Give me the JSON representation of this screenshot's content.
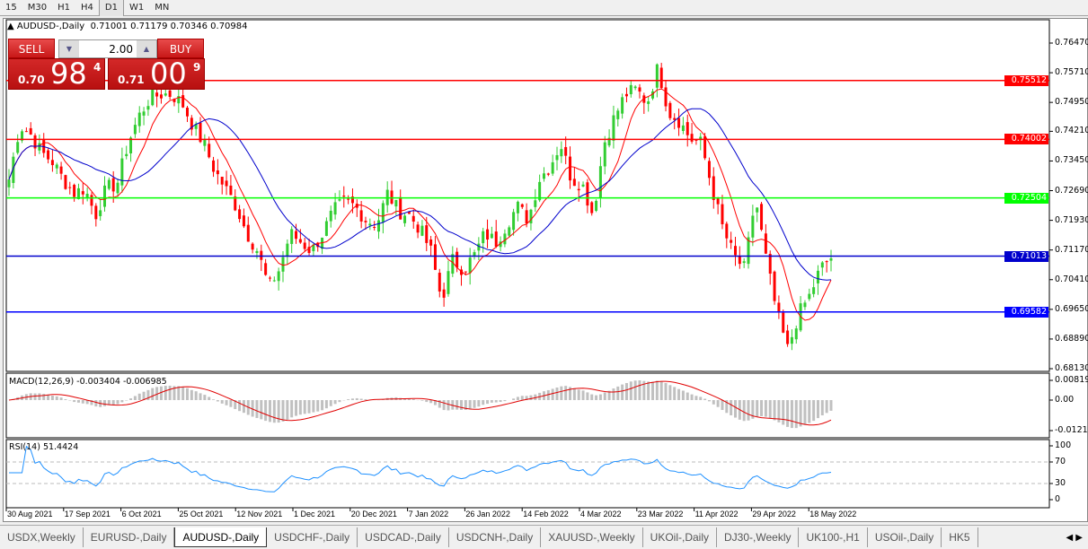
{
  "timeframes": [
    "15",
    "M30",
    "H1",
    "H4",
    "D1",
    "W1",
    "MN"
  ],
  "active_timeframe": "D1",
  "chart": {
    "title": "AUDUSD-,Daily",
    "ohlc": "0.71001 0.71179 0.70346 0.70984"
  },
  "trade": {
    "sell_label": "SELL",
    "buy_label": "BUY",
    "lot": "2.00",
    "sell_prefix": "0.70",
    "sell_big": "98",
    "sell_sup": "4",
    "buy_prefix": "0.71",
    "buy_big": "00",
    "buy_sup": "9"
  },
  "price_axis": {
    "ticks": [
      "0.76470",
      "0.75710",
      "0.74950",
      "0.74210",
      "0.73450",
      "0.72690",
      "0.71930",
      "0.71170",
      "0.70410",
      "0.69650",
      "0.68890",
      "0.68130"
    ],
    "range": [
      0.6813,
      0.7647
    ]
  },
  "hlines": [
    {
      "price": "0.75512",
      "color": "#ff0000"
    },
    {
      "price": "0.74002",
      "color": "#ff0000"
    },
    {
      "price": "0.72504",
      "color": "#00ff00"
    },
    {
      "price": "0.71013",
      "color": "#0000cc"
    },
    {
      "price": "0.69582",
      "color": "#0000ff"
    }
  ],
  "macd": {
    "label": "MACD(12,26,9) -0.003404 -0.006985",
    "ticks": [
      "0.008197",
      "0.00",
      "-0.012121"
    ]
  },
  "rsi": {
    "label": "RSI(14) 51.4424",
    "ticks": [
      "100",
      "70",
      "30",
      "0"
    ]
  },
  "date_axis": [
    "30 Aug 2021",
    "17 Sep 2021",
    "6 Oct 2021",
    "25 Oct 2021",
    "12 Nov 2021",
    "1 Dec 2021",
    "20 Dec 2021",
    "7 Jan 2022",
    "26 Jan 2022",
    "14 Feb 2022",
    "4 Mar 2022",
    "23 Mar 2022",
    "11 Apr 2022",
    "29 Apr 2022",
    "18 May 2022"
  ],
  "tabs": [
    "USDX,Weekly",
    "EURUSD-,Daily",
    "AUDUSD-,Daily",
    "USDCHF-,Daily",
    "USDCAD-,Daily",
    "USDCNH-,Daily",
    "XAUUSD-,Weekly",
    "UKOil-,Daily",
    "DJ30-,Weekly",
    "UK100-,H1",
    "USOil-,Daily",
    "HK5"
  ],
  "active_tab": "AUDUSD-,Daily",
  "colors": {
    "bull": "#32cd32",
    "bear": "#ff0000",
    "ma_fast": "#ff0000",
    "ma_slow": "#0000cc",
    "macd_hist": "#c0c0c0",
    "rsi": "#1e90ff"
  },
  "chart_data": {
    "type": "candlestick",
    "close_path": [
      0.7298,
      0.7436,
      0.7413,
      0.7367,
      0.7344,
      0.7298,
      0.7263,
      0.7275,
      0.7206,
      0.7275,
      0.7286,
      0.739,
      0.7459,
      0.7505,
      0.7516,
      0.7516,
      0.7493,
      0.7436,
      0.739,
      0.7321,
      0.7275,
      0.7229,
      0.716,
      0.7114,
      0.7022,
      0.7068,
      0.716,
      0.7137,
      0.7114,
      0.716,
      0.7217,
      0.724,
      0.7229,
      0.7194,
      0.7183,
      0.7263,
      0.7217,
      0.7206,
      0.7171,
      0.7114,
      0.6988,
      0.7091,
      0.7068,
      0.7102,
      0.716,
      0.7137,
      0.7183,
      0.7229,
      0.7194,
      0.7298,
      0.7332,
      0.739,
      0.7298,
      0.7286,
      0.7206,
      0.739,
      0.7459,
      0.7516,
      0.7528,
      0.7493,
      0.7585,
      0.747,
      0.7447,
      0.7401,
      0.739,
      0.7275,
      0.7171,
      0.7102,
      0.7068,
      0.7252,
      0.7091,
      0.6953,
      0.6861,
      0.6953,
      0.6999,
      0.7068,
      0.7098
    ]
  }
}
